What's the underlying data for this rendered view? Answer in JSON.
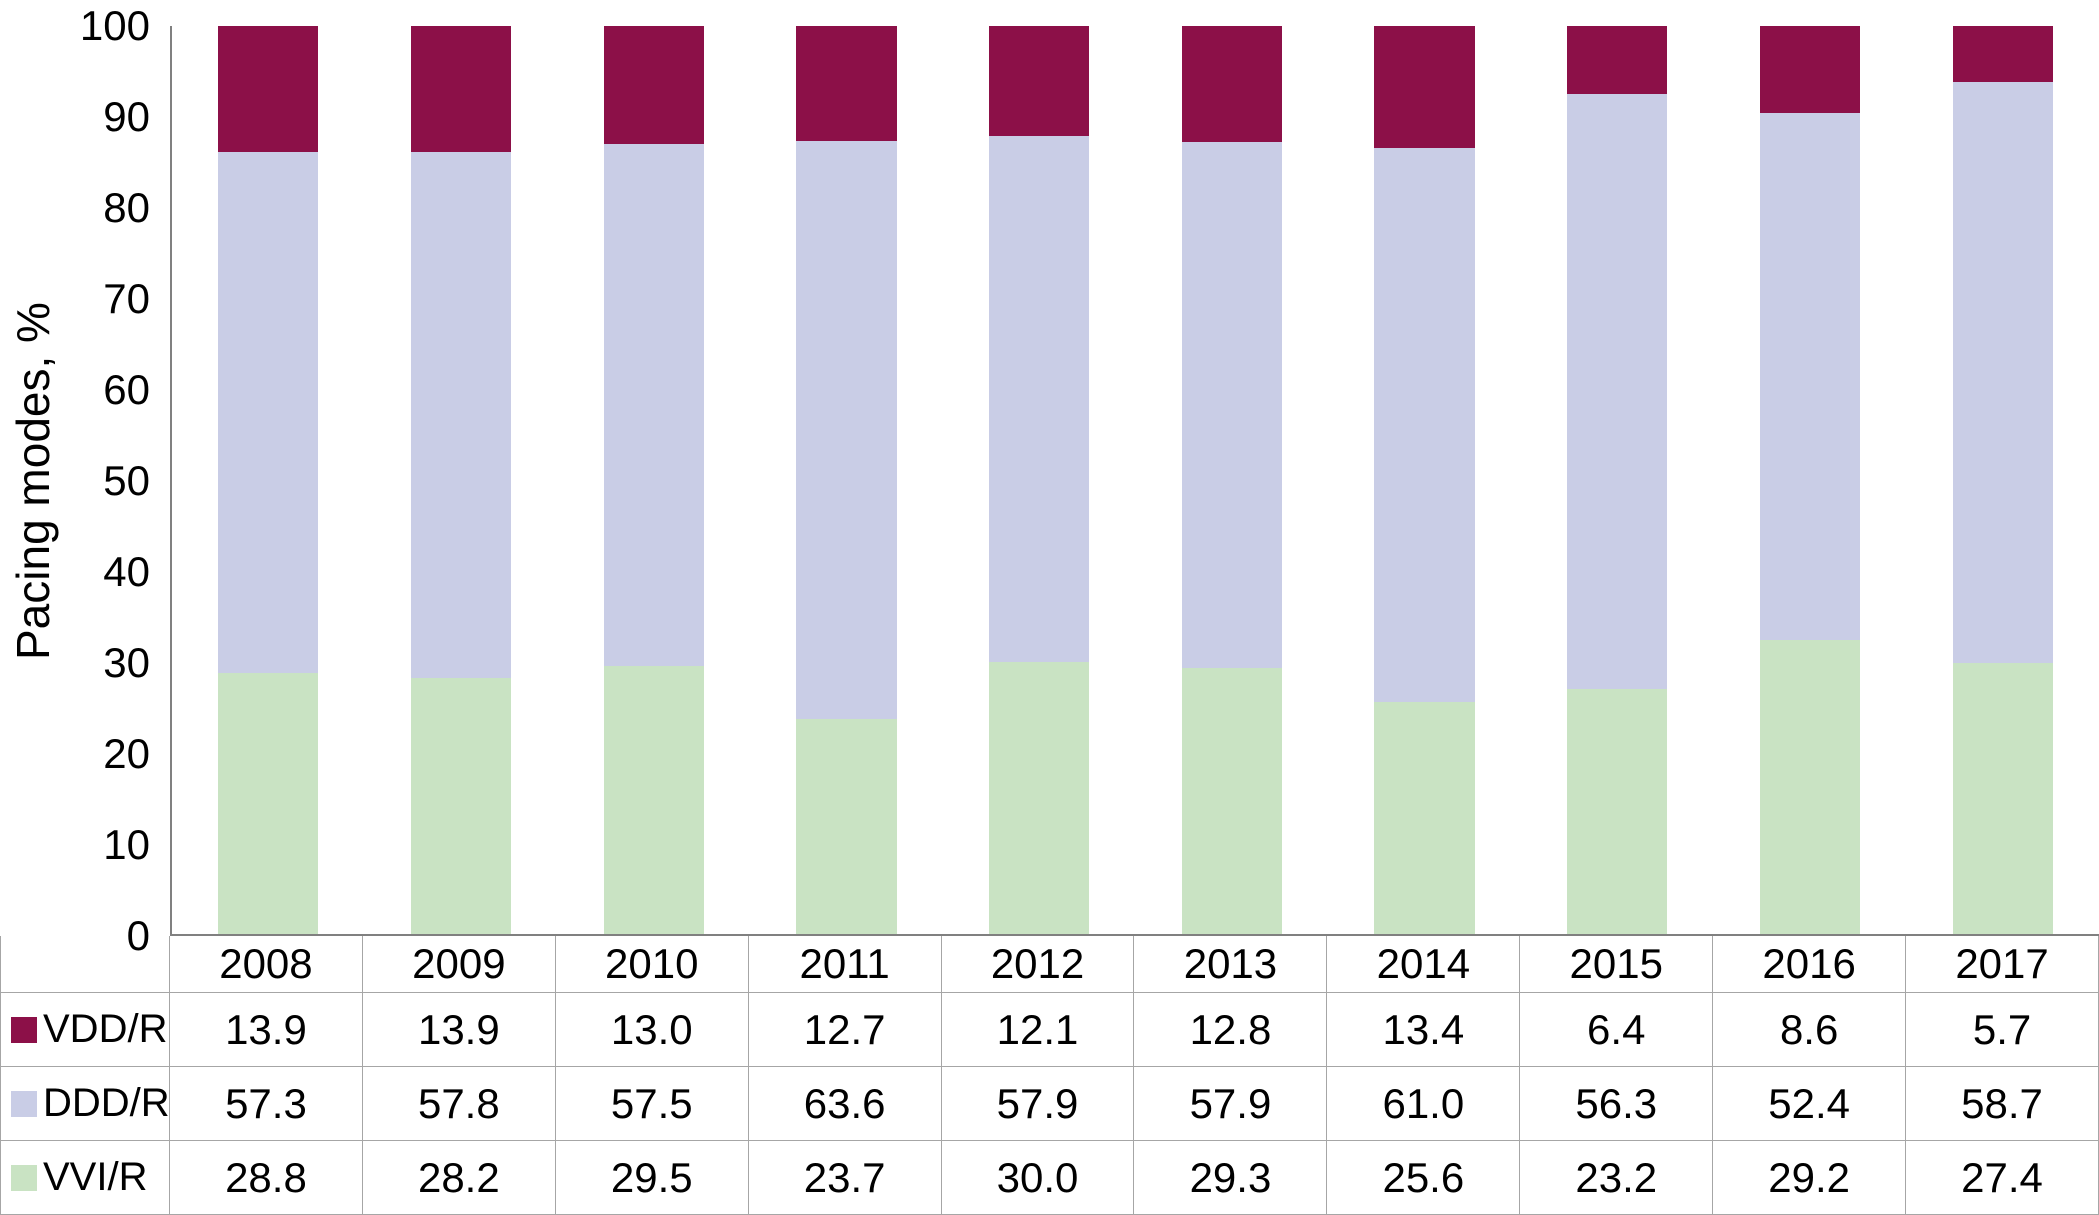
{
  "chart_data": {
    "type": "bar",
    "variant": "stacked-100",
    "title": "",
    "xlabel": "",
    "ylabel": "Pacing modes, %",
    "ylim": [
      0,
      100
    ],
    "y_ticks": [
      0,
      10,
      20,
      30,
      40,
      50,
      60,
      70,
      80,
      90,
      100
    ],
    "grid": "off",
    "legend_position": "data-table-left",
    "axis_color": "#808080",
    "table_border_color": "#a6a6a6",
    "categories": [
      "2008",
      "2009",
      "2010",
      "2011",
      "2012",
      "2013",
      "2014",
      "2015",
      "2016",
      "2017"
    ],
    "series": [
      {
        "name": "VDD/R",
        "color": "#8c1048",
        "values": [
          13.9,
          13.9,
          13.0,
          12.7,
          12.1,
          12.8,
          13.4,
          6.4,
          8.6,
          5.7
        ]
      },
      {
        "name": "DDD/R",
        "color": "#c9cde6",
        "values": [
          57.3,
          57.8,
          57.5,
          63.6,
          57.9,
          57.9,
          61.0,
          56.3,
          52.4,
          58.7
        ]
      },
      {
        "name": "VVI/R",
        "color": "#c9e3c3",
        "values": [
          28.8,
          28.2,
          29.5,
          23.7,
          30.0,
          29.3,
          25.6,
          23.2,
          29.2,
          27.4
        ]
      }
    ],
    "stack_order_bottom_to_top": [
      "VVI/R",
      "DDD/R",
      "VDD/R"
    ]
  },
  "table": {
    "rows": [
      {
        "label": "VDD/R",
        "color": "#8c1048",
        "values": [
          "13.9",
          "13.9",
          "13.0",
          "12.7",
          "12.1",
          "12.8",
          "13.4",
          "6.4",
          "8.6",
          "5.7"
        ]
      },
      {
        "label": "DDD/R",
        "color": "#c9cde6",
        "values": [
          "57.3",
          "57.8",
          "57.5",
          "63.6",
          "57.9",
          "57.9",
          "61.0",
          "56.3",
          "52.4",
          "58.7"
        ]
      },
      {
        "label": "VVI/R",
        "color": "#c9e3c3",
        "values": [
          "28.8",
          "28.2",
          "29.5",
          "23.7",
          "30.0",
          "29.3",
          "25.6",
          "23.2",
          "29.2",
          "27.4"
        ]
      }
    ]
  }
}
